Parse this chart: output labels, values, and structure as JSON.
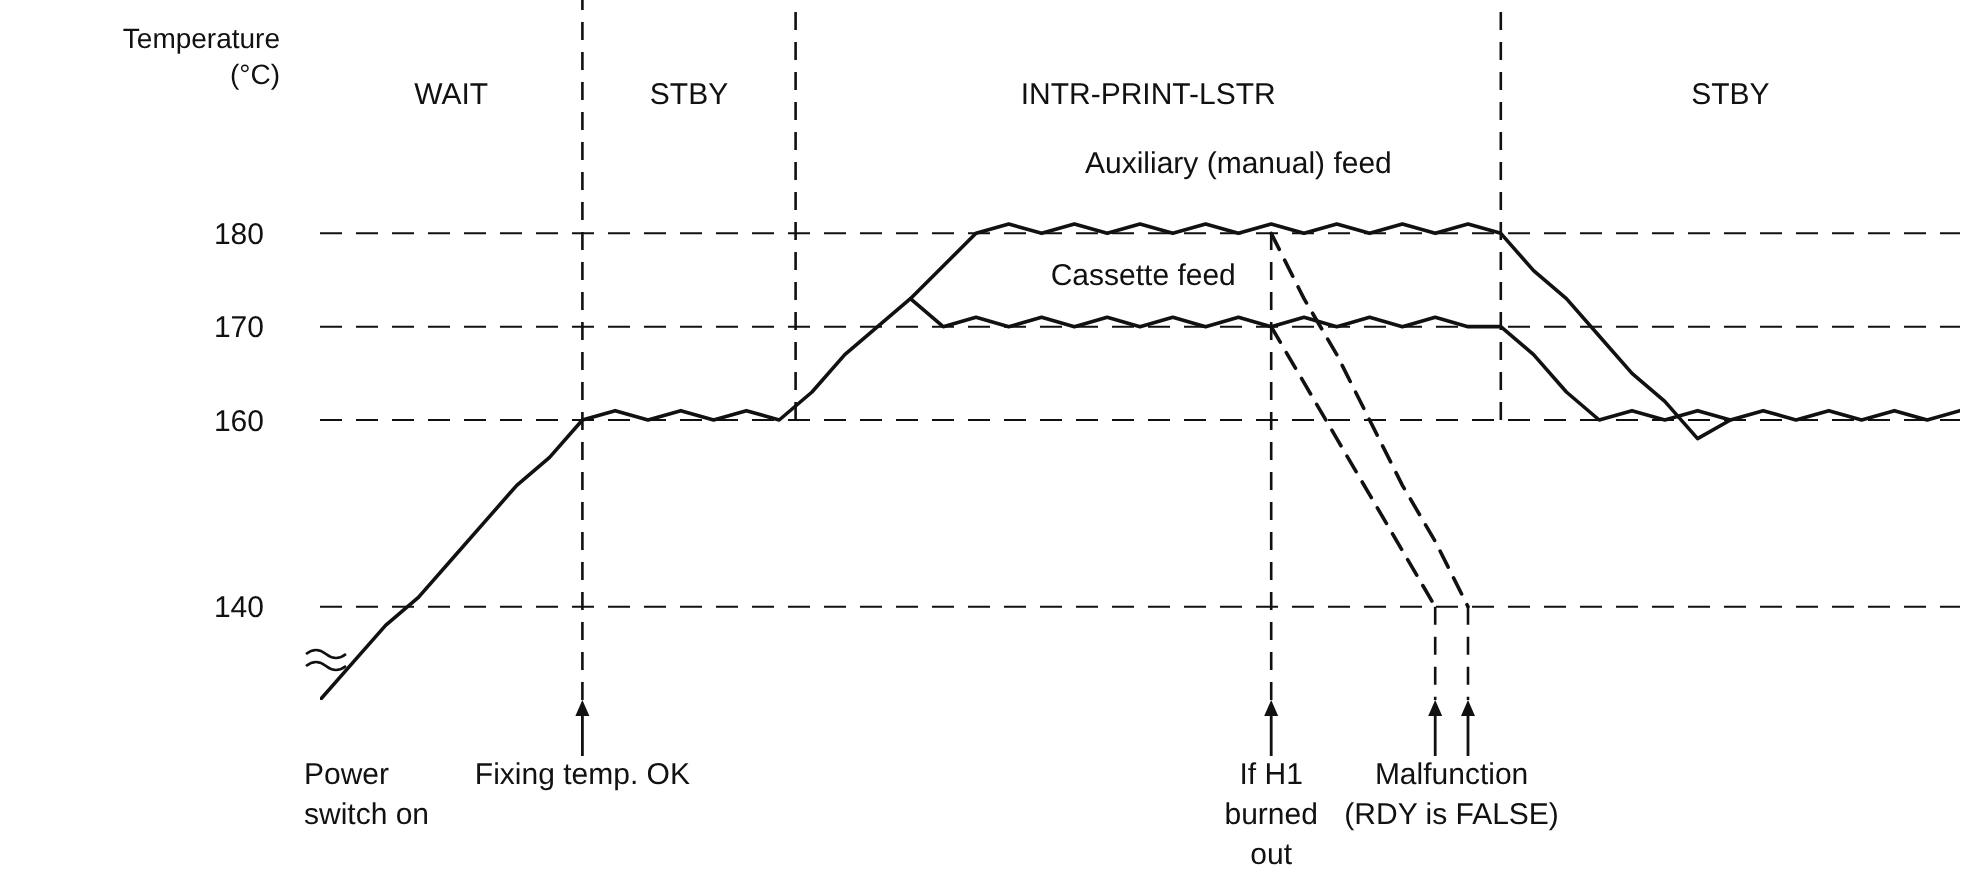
{
  "chart_data": {
    "type": "line",
    "ylabel": "Temperature (°C)",
    "categories": [
      null,
      null,
      null,
      null,
      null,
      null,
      null,
      null,
      null,
      null,
      null,
      null,
      null,
      null,
      null,
      null,
      null,
      null,
      null,
      null,
      null,
      null,
      null,
      null,
      null,
      null,
      null,
      null,
      null,
      null,
      null,
      null,
      null,
      null,
      null,
      null,
      null,
      null,
      null,
      null,
      null,
      null,
      null,
      null,
      null,
      null,
      null,
      null,
      null,
      null,
      null
    ],
    "ylim": [
      130,
      205
    ],
    "yticks": [
      140,
      160,
      170,
      180
    ],
    "grid": "y",
    "line_style": "solid",
    "series": [
      {
        "color": "#111111",
        "values": [
          130,
          134,
          138,
          141,
          145,
          149,
          153,
          156,
          160,
          161,
          160,
          161,
          160,
          161,
          160,
          163,
          167,
          170,
          173,
          170,
          171,
          170,
          171,
          170,
          171,
          170,
          171,
          170,
          171,
          170,
          171,
          170,
          171,
          170,
          171,
          170,
          170,
          167,
          163,
          160,
          161,
          160,
          161,
          160,
          161,
          160,
          161,
          160,
          161,
          160,
          161
        ]
      },
      {
        "color": "#111111",
        "values": [
          null,
          null,
          null,
          null,
          null,
          null,
          null,
          null,
          null,
          null,
          null,
          null,
          null,
          null,
          null,
          null,
          null,
          null,
          173,
          176.5,
          180,
          181,
          180,
          181,
          180,
          181,
          180,
          181,
          180,
          181,
          180,
          181,
          180,
          181,
          180,
          181,
          180,
          176,
          173,
          169,
          165,
          162,
          158,
          160,
          null,
          null,
          null,
          null,
          null,
          null,
          null
        ]
      },
      {
        "color": "#111111",
        "line_style": "dashed",
        "values": [
          null,
          null,
          null,
          null,
          null,
          null,
          null,
          null,
          null,
          null,
          null,
          null,
          null,
          null,
          null,
          null,
          null,
          null,
          null,
          null,
          null,
          null,
          null,
          null,
          null,
          null,
          null,
          null,
          null,
          180,
          173,
          167,
          160,
          153,
          147,
          140,
          null,
          null,
          null,
          null,
          null,
          null,
          null,
          null,
          null,
          null,
          null,
          null,
          null,
          null,
          null
        ]
      },
      {
        "color": "#111111",
        "line_style": "dashed",
        "values": [
          null,
          null,
          null,
          null,
          null,
          null,
          null,
          null,
          null,
          null,
          null,
          null,
          null,
          null,
          null,
          null,
          null,
          null,
          null,
          null,
          null,
          null,
          null,
          null,
          null,
          null,
          null,
          null,
          null,
          170,
          164,
          158,
          152,
          146,
          140,
          null,
          null,
          null,
          null,
          null,
          null,
          null,
          null,
          null,
          null,
          null,
          null,
          null,
          null,
          null,
          null
        ]
      }
    ],
    "annotations": [
      "WAIT",
      "STBY",
      "INTR-PRINT-LSTR",
      "STBY",
      "Auxiliary (manual) feed",
      "Cassette feed",
      "Power\nswitch on",
      "Fixing temp. OK",
      "If H1\nburned\nout",
      "Malfunction\n(RDY is FALSE)"
    ]
  }
}
